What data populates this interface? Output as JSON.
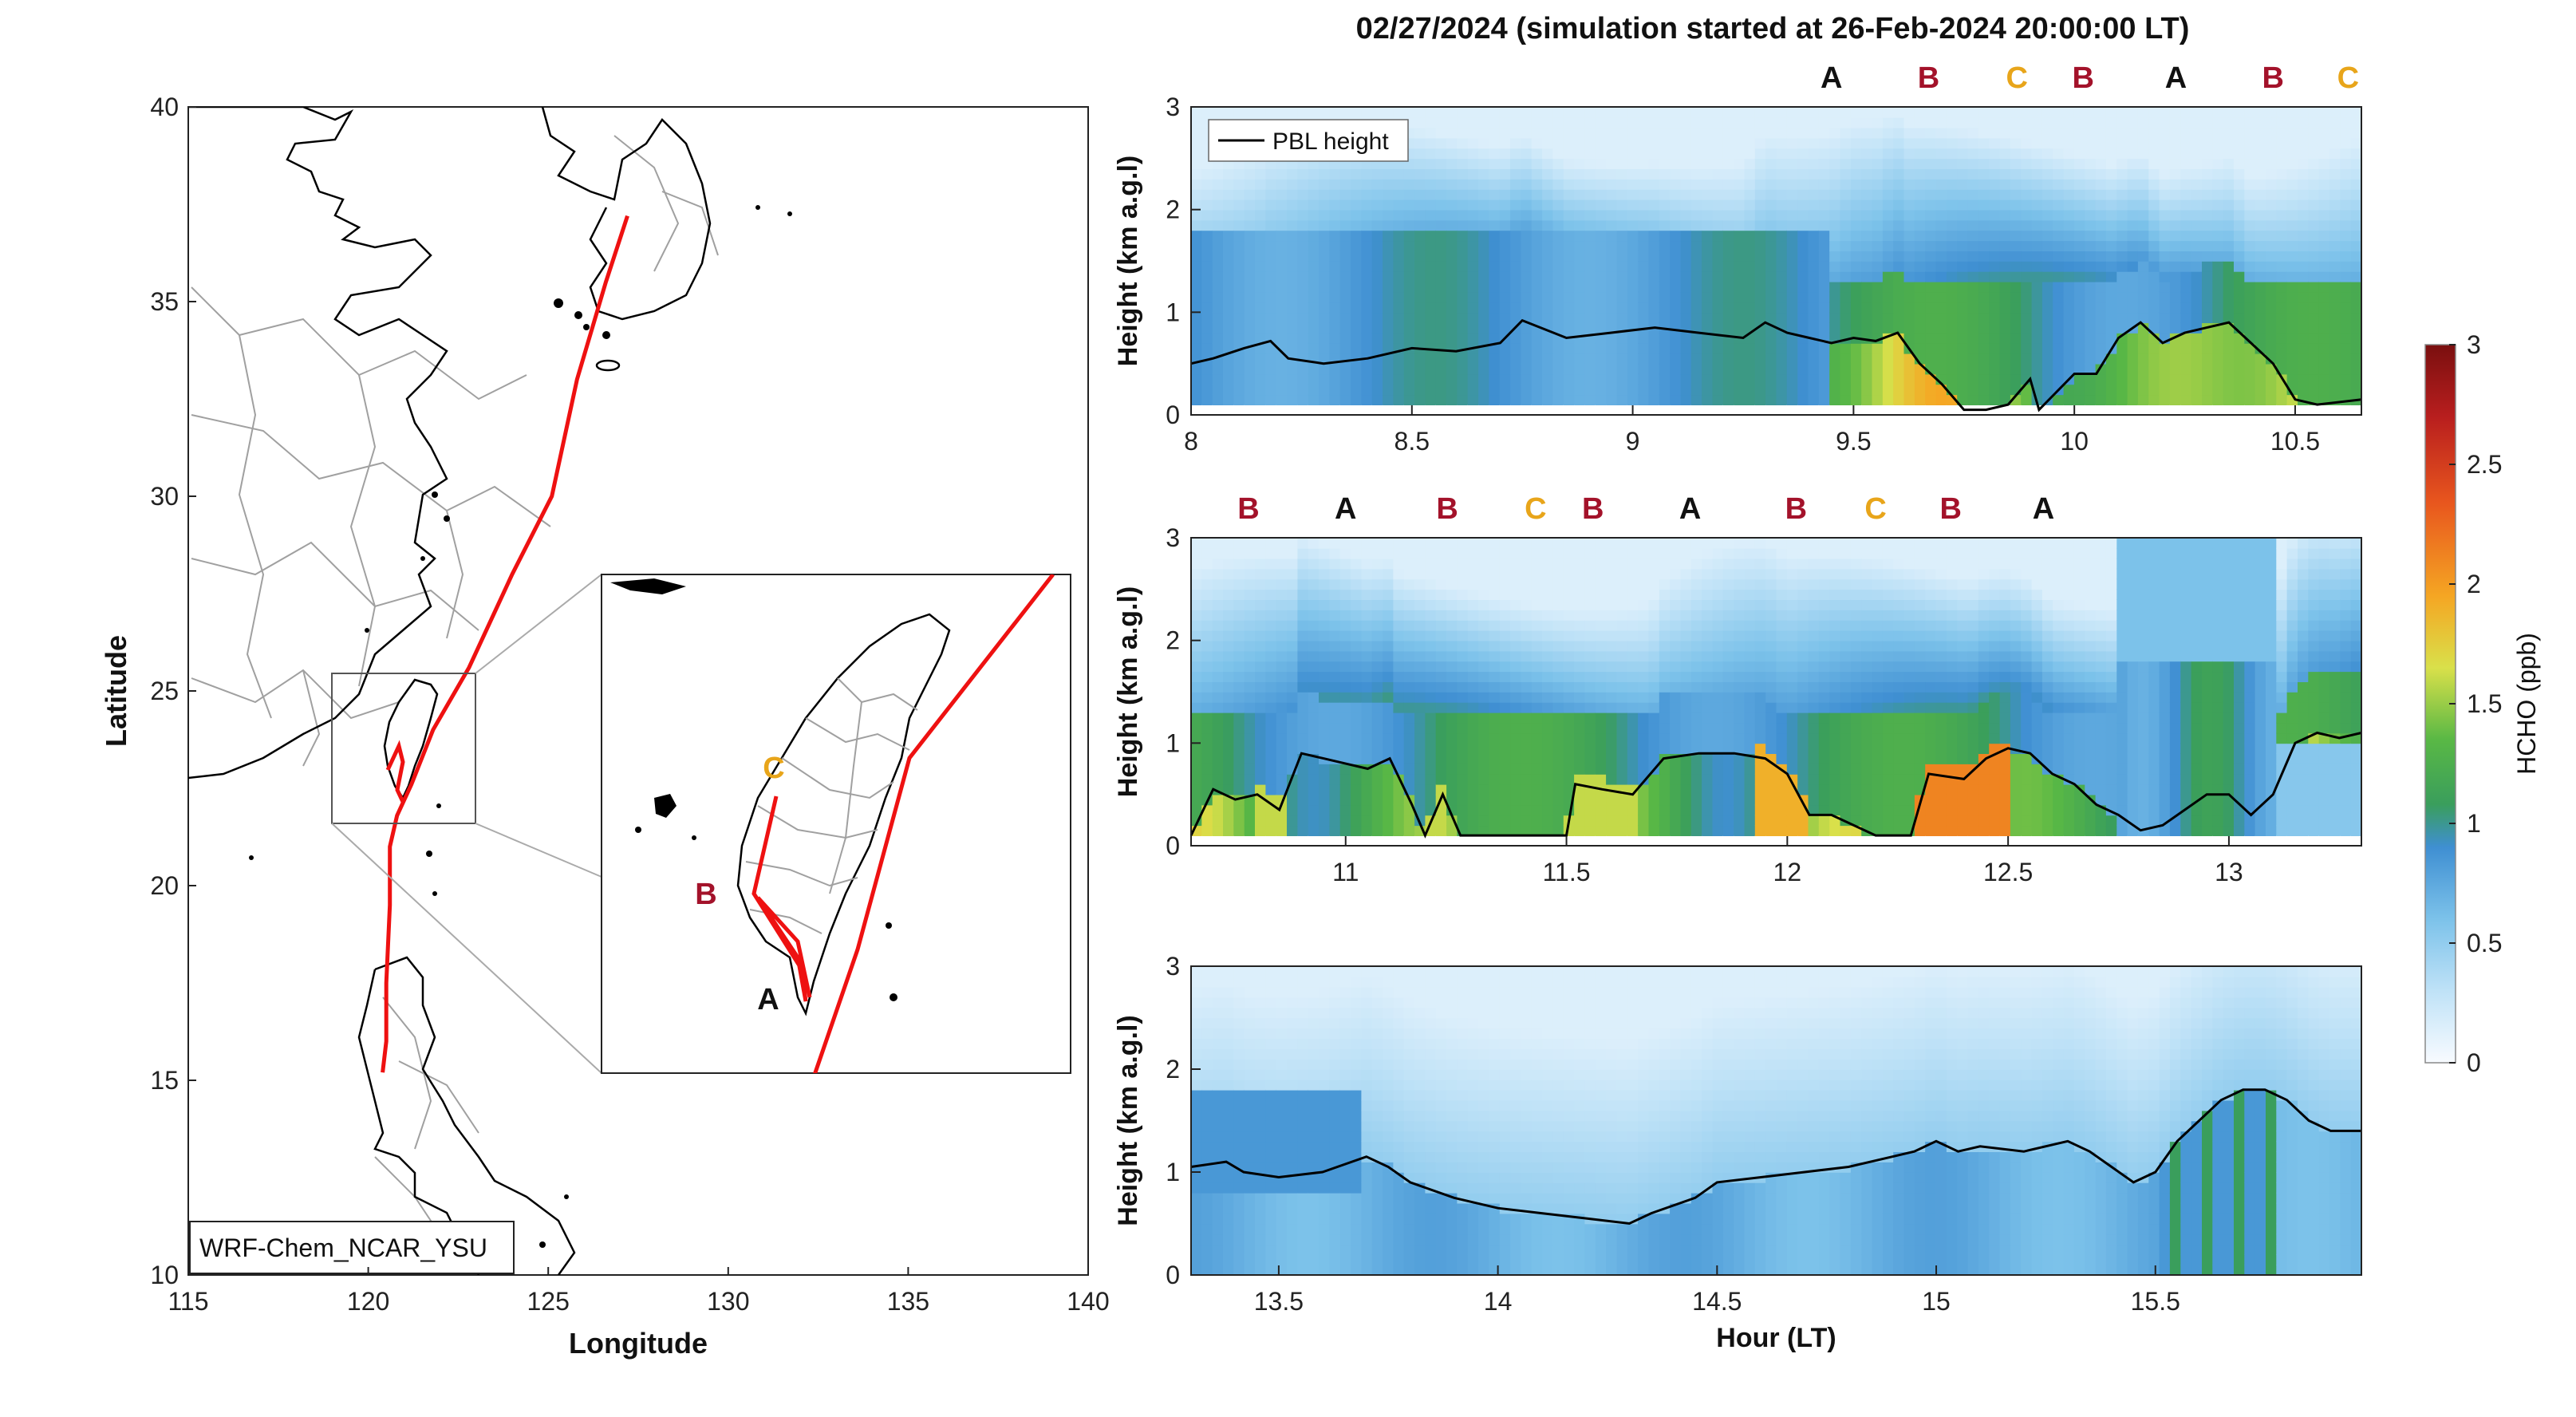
{
  "title": "02/27/2024 (simulation started at 26-Feb-2024 20:00:00 LT)",
  "colors": {
    "track": "#ee1111",
    "label_A": "#111111",
    "label_B": "#a3122a",
    "label_C": "#e8a51a",
    "pbl_line": "#000000",
    "coast": "#000000",
    "borders": "#9a9a9a",
    "colormap": [
      "#f8fbff",
      "#bfe2f7",
      "#7cc2ea",
      "#3f8fd2",
      "#3a9e5c",
      "#59b845",
      "#d9e04a",
      "#f5a623",
      "#e8561e",
      "#b81e1e",
      "#7a0f0f"
    ]
  },
  "map": {
    "xlabel": "Longitude",
    "ylabel": "Latitude",
    "xticks": [
      "115",
      "120",
      "125",
      "130",
      "135",
      "140"
    ],
    "yticks": [
      "10",
      "15",
      "20",
      "25",
      "30",
      "35",
      "40"
    ],
    "model_label": "WRF-Chem_NCAR_YSU",
    "xlim": [
      115,
      140
    ],
    "ylim": [
      10,
      40
    ],
    "inset_labels": [
      {
        "text": "C",
        "color_key": "label_C"
      },
      {
        "text": "B",
        "color_key": "label_B"
      },
      {
        "text": "A",
        "color_key": "label_A"
      }
    ]
  },
  "chart_data": [
    {
      "type": "line",
      "panel": "flight-track-map",
      "xlabel": "Longitude",
      "ylabel": "Latitude",
      "xlim": [
        115,
        140
      ],
      "ylim": [
        10,
        40
      ],
      "series": [
        {
          "x": [
            127.2,
            126.6,
            125.8,
            125.1,
            124.0,
            122.8,
            121.8,
            121.2,
            120.8,
            120.6,
            120.6,
            120.5,
            120.5,
            120.4
          ],
          "y": [
            37.2,
            35.5,
            33.0,
            30.0,
            28.0,
            25.6,
            24.0,
            22.6,
            21.8,
            21.0,
            19.5,
            17.5,
            16.0,
            15.2
          ]
        }
      ]
    },
    {
      "type": "heatmap",
      "panel": "curtain-1",
      "xlabel": "",
      "ylabel": "Height (km a.g.l)",
      "xlim": [
        8.0,
        10.65
      ],
      "ylim": [
        0,
        3
      ],
      "xticks": [
        "8",
        "8.5",
        "9",
        "9.5",
        "10",
        "10.5"
      ],
      "yticks": [
        "0",
        "1",
        "2",
        "3"
      ],
      "legend": "PBL height",
      "top_labels": [
        {
          "t": 9.45,
          "text": "A",
          "color_key": "label_A"
        },
        {
          "t": 9.67,
          "text": "B",
          "color_key": "label_B"
        },
        {
          "t": 9.87,
          "text": "C",
          "color_key": "label_C"
        },
        {
          "t": 10.02,
          "text": "B",
          "color_key": "label_B"
        },
        {
          "t": 10.23,
          "text": "A",
          "color_key": "label_A"
        },
        {
          "t": 10.45,
          "text": "B",
          "color_key": "label_B"
        },
        {
          "t": 10.62,
          "text": "C",
          "color_key": "label_C"
        }
      ],
      "pbl": {
        "x": [
          8.0,
          8.05,
          8.12,
          8.18,
          8.22,
          8.3,
          8.4,
          8.5,
          8.6,
          8.7,
          8.75,
          8.85,
          8.95,
          9.05,
          9.15,
          9.25,
          9.3,
          9.35,
          9.4,
          9.45,
          9.5,
          9.55,
          9.6,
          9.65,
          9.7,
          9.75,
          9.8,
          9.85,
          9.9,
          9.92,
          10.0,
          10.05,
          10.1,
          10.15,
          10.2,
          10.25,
          10.3,
          10.35,
          10.4,
          10.45,
          10.5,
          10.55,
          10.65
        ],
        "y": [
          0.5,
          0.55,
          0.65,
          0.72,
          0.55,
          0.5,
          0.55,
          0.65,
          0.62,
          0.7,
          0.92,
          0.75,
          0.8,
          0.85,
          0.8,
          0.75,
          0.9,
          0.8,
          0.75,
          0.7,
          0.75,
          0.72,
          0.8,
          0.5,
          0.3,
          0.05,
          0.05,
          0.1,
          0.35,
          0.05,
          0.4,
          0.4,
          0.75,
          0.9,
          0.7,
          0.8,
          0.85,
          0.9,
          0.7,
          0.5,
          0.15,
          0.1,
          0.15
        ]
      }
    },
    {
      "type": "heatmap",
      "panel": "curtain-2",
      "xlabel": "",
      "ylabel": "Height (km a.g.l)",
      "xlim": [
        10.65,
        13.3
      ],
      "ylim": [
        0,
        3
      ],
      "xticks": [
        "11",
        "11.5",
        "12",
        "12.5",
        "13"
      ],
      "yticks": [
        "0",
        "1",
        "2",
        "3"
      ],
      "top_labels": [
        {
          "t": 10.78,
          "text": "B",
          "color_key": "label_B"
        },
        {
          "t": 11.0,
          "text": "A",
          "color_key": "label_A"
        },
        {
          "t": 11.23,
          "text": "B",
          "color_key": "label_B"
        },
        {
          "t": 11.43,
          "text": "C",
          "color_key": "label_C"
        },
        {
          "t": 11.56,
          "text": "B",
          "color_key": "label_B"
        },
        {
          "t": 11.78,
          "text": "A",
          "color_key": "label_A"
        },
        {
          "t": 12.02,
          "text": "B",
          "color_key": "label_B"
        },
        {
          "t": 12.2,
          "text": "C",
          "color_key": "label_C"
        },
        {
          "t": 12.37,
          "text": "B",
          "color_key": "label_B"
        },
        {
          "t": 12.58,
          "text": "A",
          "color_key": "label_A"
        }
      ],
      "pbl": {
        "x": [
          10.65,
          10.7,
          10.75,
          10.8,
          10.85,
          10.9,
          10.95,
          11.0,
          11.05,
          11.1,
          11.15,
          11.18,
          11.22,
          11.26,
          11.3,
          11.4,
          11.5,
          11.52,
          11.58,
          11.65,
          11.72,
          11.8,
          11.88,
          11.95,
          12.0,
          12.05,
          12.1,
          12.2,
          12.25,
          12.28,
          12.32,
          12.4,
          12.45,
          12.5,
          12.55,
          12.6,
          12.65,
          12.7,
          12.75,
          12.8,
          12.85,
          12.9,
          12.95,
          13.0,
          13.05,
          13.1,
          13.15,
          13.2,
          13.25,
          13.3
        ],
        "y": [
          0.1,
          0.55,
          0.45,
          0.5,
          0.35,
          0.9,
          0.85,
          0.8,
          0.75,
          0.85,
          0.4,
          0.1,
          0.5,
          0.1,
          0.1,
          0.1,
          0.1,
          0.6,
          0.55,
          0.5,
          0.85,
          0.9,
          0.9,
          0.85,
          0.7,
          0.3,
          0.3,
          0.1,
          0.1,
          0.1,
          0.7,
          0.65,
          0.85,
          0.95,
          0.9,
          0.7,
          0.6,
          0.4,
          0.3,
          0.15,
          0.2,
          0.35,
          0.5,
          0.5,
          0.3,
          0.5,
          1.0,
          1.1,
          1.05,
          1.1
        ]
      }
    },
    {
      "type": "heatmap",
      "panel": "curtain-3",
      "xlabel": "Hour (LT)",
      "ylabel": "Height (km a.g.l)",
      "xlim": [
        13.3,
        15.97
      ],
      "ylim": [
        0,
        3
      ],
      "xticks": [
        "13.5",
        "14",
        "14.5",
        "15",
        "15.5"
      ],
      "yticks": [
        "0",
        "1",
        "2",
        "3"
      ],
      "pbl": {
        "x": [
          13.3,
          13.38,
          13.42,
          13.5,
          13.6,
          13.7,
          13.75,
          13.8,
          13.9,
          14.0,
          14.1,
          14.2,
          14.3,
          14.35,
          14.45,
          14.5,
          14.6,
          14.7,
          14.8,
          14.9,
          14.95,
          15.0,
          15.05,
          15.1,
          15.2,
          15.3,
          15.35,
          15.4,
          15.45,
          15.5,
          15.55,
          15.6,
          15.65,
          15.7,
          15.75,
          15.8,
          15.85,
          15.9,
          15.97
        ],
        "y": [
          1.05,
          1.1,
          1.0,
          0.95,
          1.0,
          1.15,
          1.05,
          0.9,
          0.75,
          0.65,
          0.6,
          0.55,
          0.5,
          0.6,
          0.75,
          0.9,
          0.95,
          1.0,
          1.05,
          1.15,
          1.2,
          1.3,
          1.2,
          1.25,
          1.2,
          1.3,
          1.2,
          1.05,
          0.9,
          1.0,
          1.3,
          1.5,
          1.7,
          1.8,
          1.8,
          1.7,
          1.5,
          1.4,
          1.4
        ]
      }
    }
  ],
  "colorbar": {
    "label": "HCHO (ppb)",
    "ticks": [
      "0",
      "0.5",
      "1",
      "1.5",
      "2",
      "2.5",
      "3"
    ],
    "lim": [
      0,
      3
    ]
  }
}
